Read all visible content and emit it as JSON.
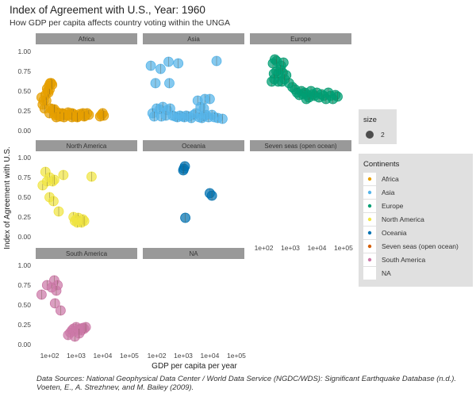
{
  "title": "Index of Agreement with U.S., Year: 1960",
  "subtitle": "How GDP per capita affects country voting within the UNGA",
  "caption_lines": [
    "Data Sources: National Geophysical Data Center / World Data Service (NGDC/WDS): Significant Earthquake Database (n.d.).",
    "Voeten, E., A. Strezhnev, and M. Bailey (2009)."
  ],
  "chart_data": {
    "type": "scatter",
    "xlabel": "GDP per capita per year",
    "ylabel": "Index of Agreement with U.S.",
    "x_scale": "log10",
    "xlim": [
      30,
      200000
    ],
    "ylim": [
      0,
      1
    ],
    "x_tick_values": [
      100,
      1000,
      10000,
      100000
    ],
    "x_tick_labels": [
      "1e+02",
      "1e+03",
      "1e+04",
      "1e+05"
    ],
    "y_tick_values": [
      0,
      0.25,
      0.5,
      0.75,
      1
    ],
    "y_tick_labels": [
      "0.00",
      "0.25",
      "0.50",
      "0.75",
      "1.00"
    ],
    "grid": false,
    "legend_placement": "right",
    "size_legend": {
      "title": "size",
      "label": "2"
    },
    "color_legend": {
      "title": "Continents",
      "entries": [
        {
          "name": "Africa",
          "color": "#E69F00"
        },
        {
          "name": "Asia",
          "color": "#56B4E9"
        },
        {
          "name": "Europe",
          "color": "#009E73"
        },
        {
          "name": "North America",
          "color": "#F0E442"
        },
        {
          "name": "Oceania",
          "color": "#0072B2"
        },
        {
          "name": "Seven seas (open ocean)",
          "color": "#D55E00"
        },
        {
          "name": "South America",
          "color": "#CC79A7"
        },
        {
          "name": "NA",
          "color": null
        }
      ]
    },
    "panels": [
      {
        "name": "Africa",
        "color": "#E69F00",
        "points": [
          [
            50,
            0.42
          ],
          [
            55,
            0.33
          ],
          [
            60,
            0.38
          ],
          [
            65,
            0.28
          ],
          [
            70,
            0.45
          ],
          [
            75,
            0.38
          ],
          [
            80,
            0.53
          ],
          [
            85,
            0.5
          ],
          [
            90,
            0.48
          ],
          [
            95,
            0.57
          ],
          [
            100,
            0.52
          ],
          [
            105,
            0.6
          ],
          [
            115,
            0.6
          ],
          [
            125,
            0.58
          ],
          [
            100,
            0.22
          ],
          [
            110,
            0.28
          ],
          [
            130,
            0.27
          ],
          [
            150,
            0.24
          ],
          [
            160,
            0.2
          ],
          [
            170,
            0.22
          ],
          [
            200,
            0.23
          ],
          [
            220,
            0.19
          ],
          [
            250,
            0.21
          ],
          [
            280,
            0.2
          ],
          [
            300,
            0.22
          ],
          [
            350,
            0.21
          ],
          [
            400,
            0.2
          ],
          [
            450,
            0.19
          ],
          [
            500,
            0.23
          ],
          [
            550,
            0.21
          ],
          [
            600,
            0.2
          ],
          [
            700,
            0.22
          ],
          [
            800,
            0.21
          ],
          [
            900,
            0.18
          ],
          [
            1000,
            0.19
          ],
          [
            1200,
            0.18
          ],
          [
            1400,
            0.21
          ],
          [
            1600,
            0.2
          ],
          [
            1800,
            0.22
          ],
          [
            2200,
            0.19
          ],
          [
            2600,
            0.22
          ],
          [
            3000,
            0.2
          ],
          [
            150,
            0.27
          ],
          [
            180,
            0.17
          ],
          [
            250,
            0.18
          ],
          [
            350,
            0.17
          ],
          [
            700,
            0.17
          ],
          [
            1100,
            0.17
          ],
          [
            2000,
            0.18
          ],
          [
            8000,
            0.18
          ],
          [
            9000,
            0.2
          ],
          [
            10000,
            0.22
          ],
          [
            11000,
            0.19
          ]
        ]
      },
      {
        "name": "Asia",
        "color": "#56B4E9",
        "points": [
          [
            60,
            0.82
          ],
          [
            140,
            0.78
          ],
          [
            280,
            0.87
          ],
          [
            650,
            0.85
          ],
          [
            90,
            0.6
          ],
          [
            300,
            0.6
          ],
          [
            100,
            0.28
          ],
          [
            130,
            0.27
          ],
          [
            170,
            0.3
          ],
          [
            250,
            0.26
          ],
          [
            320,
            0.28
          ],
          [
            70,
            0.22
          ],
          [
            80,
            0.18
          ],
          [
            150,
            0.18
          ],
          [
            220,
            0.19
          ],
          [
            400,
            0.19
          ],
          [
            500,
            0.18
          ],
          [
            600,
            0.17
          ],
          [
            750,
            0.19
          ],
          [
            900,
            0.18
          ],
          [
            1100,
            0.17
          ],
          [
            1300,
            0.19
          ],
          [
            1600,
            0.18
          ],
          [
            2000,
            0.16
          ],
          [
            2500,
            0.2
          ],
          [
            3000,
            0.22
          ],
          [
            4000,
            0.17
          ],
          [
            5000,
            0.16
          ],
          [
            6000,
            0.18
          ],
          [
            7000,
            0.2
          ],
          [
            9000,
            0.17
          ],
          [
            12000,
            0.2
          ],
          [
            15000,
            0.17
          ],
          [
            20000,
            0.16
          ],
          [
            30000,
            0.15
          ],
          [
            3500,
            0.38
          ],
          [
            6500,
            0.4
          ],
          [
            10000,
            0.4
          ],
          [
            4500,
            0.3
          ],
          [
            6000,
            0.28
          ],
          [
            18000,
            0.88
          ]
        ]
      },
      {
        "name": "Europe",
        "color": "#009E73",
        "points": [
          [
            220,
            0.85
          ],
          [
            260,
            0.9
          ],
          [
            300,
            0.88
          ],
          [
            450,
            0.82
          ],
          [
            550,
            0.86
          ],
          [
            240,
            0.72
          ],
          [
            300,
            0.75
          ],
          [
            350,
            0.72
          ],
          [
            420,
            0.77
          ],
          [
            520,
            0.73
          ],
          [
            700,
            0.7
          ],
          [
            200,
            0.62
          ],
          [
            250,
            0.65
          ],
          [
            350,
            0.62
          ],
          [
            480,
            0.62
          ],
          [
            600,
            0.65
          ],
          [
            900,
            0.6
          ],
          [
            1200,
            0.55
          ],
          [
            1500,
            0.52
          ],
          [
            1800,
            0.48
          ],
          [
            2200,
            0.45
          ],
          [
            2600,
            0.5
          ],
          [
            3000,
            0.46
          ],
          [
            3500,
            0.48
          ],
          [
            4000,
            0.4
          ],
          [
            4500,
            0.45
          ],
          [
            5000,
            0.42
          ],
          [
            6000,
            0.5
          ],
          [
            7000,
            0.46
          ],
          [
            8000,
            0.44
          ],
          [
            10000,
            0.48
          ],
          [
            12000,
            0.42
          ],
          [
            15000,
            0.46
          ],
          [
            18000,
            0.44
          ],
          [
            22000,
            0.4
          ],
          [
            27000,
            0.48
          ],
          [
            33000,
            0.44
          ],
          [
            40000,
            0.4
          ],
          [
            50000,
            0.45
          ],
          [
            60000,
            0.43
          ]
        ]
      },
      {
        "name": "North America",
        "color": "#F0E442",
        "points": [
          [
            55,
            0.65
          ],
          [
            70,
            0.82
          ],
          [
            80,
            0.7
          ],
          [
            100,
            0.75
          ],
          [
            130,
            0.7
          ],
          [
            150,
            0.72
          ],
          [
            330,
            0.78
          ],
          [
            3800,
            0.76
          ],
          [
            100,
            0.5
          ],
          [
            140,
            0.45
          ],
          [
            220,
            0.32
          ],
          [
            800,
            0.25
          ],
          [
            900,
            0.2
          ],
          [
            1000,
            0.22
          ],
          [
            1100,
            0.18
          ],
          [
            1200,
            0.24
          ],
          [
            1400,
            0.2
          ],
          [
            1600,
            0.18
          ],
          [
            1800,
            0.22
          ],
          [
            2000,
            0.2
          ]
        ]
      },
      {
        "name": "Oceania",
        "color": "#0072B2",
        "points": [
          [
            1050,
            0.86
          ],
          [
            1150,
            0.89
          ],
          [
            1000,
            0.84
          ],
          [
            10000,
            0.55
          ],
          [
            12000,
            0.52
          ],
          [
            1200,
            0.24
          ]
        ]
      },
      {
        "name": "Seven seas (open ocean)",
        "color": "#D55E00",
        "points": []
      },
      {
        "name": "South America",
        "color": "#CC79A7",
        "points": [
          [
            50,
            0.63
          ],
          [
            80,
            0.75
          ],
          [
            120,
            0.72
          ],
          [
            150,
            0.81
          ],
          [
            200,
            0.75
          ],
          [
            180,
            0.68
          ],
          [
            160,
            0.52
          ],
          [
            260,
            0.43
          ],
          [
            500,
            0.12
          ],
          [
            600,
            0.15
          ],
          [
            700,
            0.18
          ],
          [
            800,
            0.2
          ],
          [
            900,
            0.17
          ],
          [
            1000,
            0.22
          ],
          [
            1200,
            0.19
          ],
          [
            1400,
            0.2
          ],
          [
            1600,
            0.18
          ],
          [
            1800,
            0.21
          ],
          [
            2000,
            0.2
          ],
          [
            2300,
            0.22
          ],
          [
            900,
            0.1
          ],
          [
            1300,
            0.14
          ]
        ]
      },
      {
        "name": "NA",
        "color": null,
        "points": []
      }
    ]
  }
}
